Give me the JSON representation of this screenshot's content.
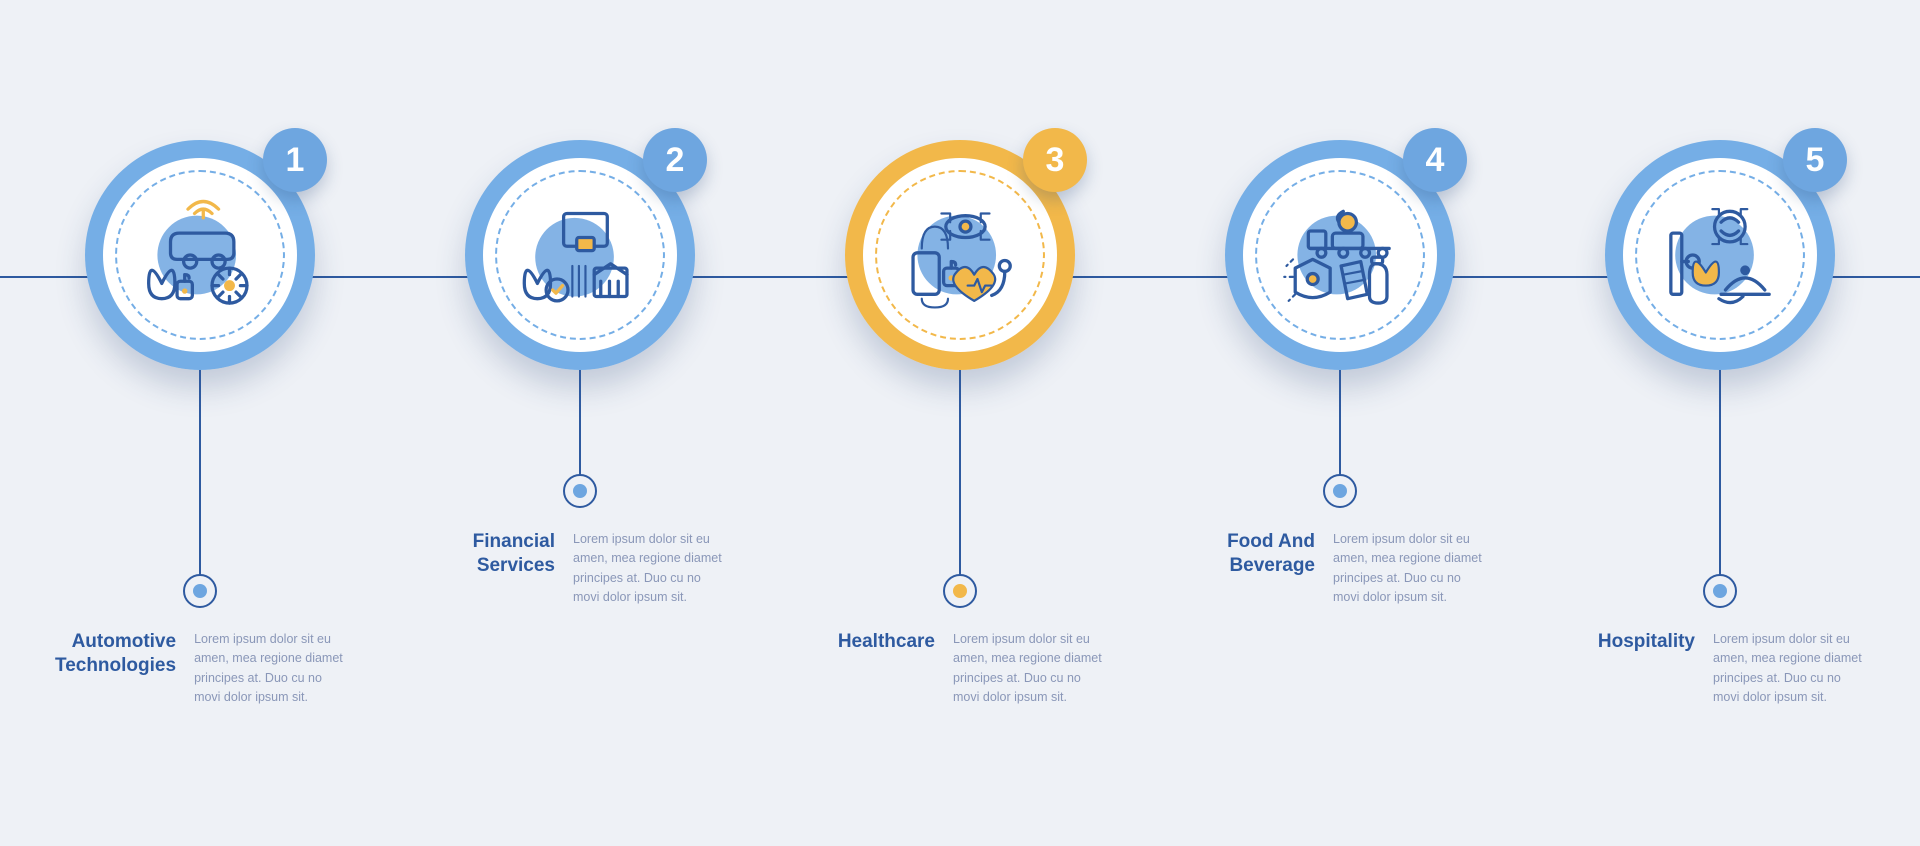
{
  "infographic": {
    "type": "infographic",
    "background_color": "#eef1f6",
    "line_color": "#2e5aa0",
    "title_color": "#2e5aa0",
    "desc_color": "#8a97b8",
    "title_fontsize": 19,
    "desc_fontsize": 12.5,
    "badge_fontsize": 34,
    "medallion_diameter": 230,
    "badge_diameter": 64,
    "stem_dot_diameter": 34,
    "stem_heights": [
      220,
      120,
      220,
      120,
      220
    ],
    "icon_stroke": "#2e5aa0",
    "icon_accent": "#f2b84a",
    "icon_bg_circle": "#6ea6e0",
    "steps": [
      {
        "number": "1",
        "title": "Automotive Technologies",
        "desc": "Lorem ipsum dolor sit eu amen, mea regione diamet principes at. Duo cu no movi dolor ipsum sit.",
        "ring_color": "#75aee6",
        "badge_color": "#6ea6e0",
        "dot_color": "#6ea6e0",
        "icon": "automotive"
      },
      {
        "number": "2",
        "title": "Financial Services",
        "desc": "Lorem ipsum dolor sit eu amen, mea regione diamet principes at. Duo cu no movi dolor ipsum sit.",
        "ring_color": "#75aee6",
        "badge_color": "#6ea6e0",
        "dot_color": "#6ea6e0",
        "icon": "financial"
      },
      {
        "number": "3",
        "title": "Healthcare",
        "desc": "Lorem ipsum dolor sit eu amen, mea regione diamet principes at. Duo cu no movi dolor ipsum sit.",
        "ring_color": "#f2b84a",
        "badge_color": "#f2b84a",
        "dot_color": "#f2b84a",
        "icon": "healthcare"
      },
      {
        "number": "4",
        "title": "Food And Beverage",
        "desc": "Lorem ipsum dolor sit eu amen, mea regione diamet principes at. Duo cu no movi dolor ipsum sit.",
        "ring_color": "#75aee6",
        "badge_color": "#6ea6e0",
        "dot_color": "#6ea6e0",
        "icon": "food"
      },
      {
        "number": "5",
        "title": "Hospitality",
        "desc": "Lorem ipsum dolor sit eu amen, mea regione diamet principes at. Duo cu no movi dolor ipsum sit.",
        "ring_color": "#75aee6",
        "badge_color": "#6ea6e0",
        "dot_color": "#6ea6e0",
        "icon": "hospitality"
      }
    ]
  }
}
